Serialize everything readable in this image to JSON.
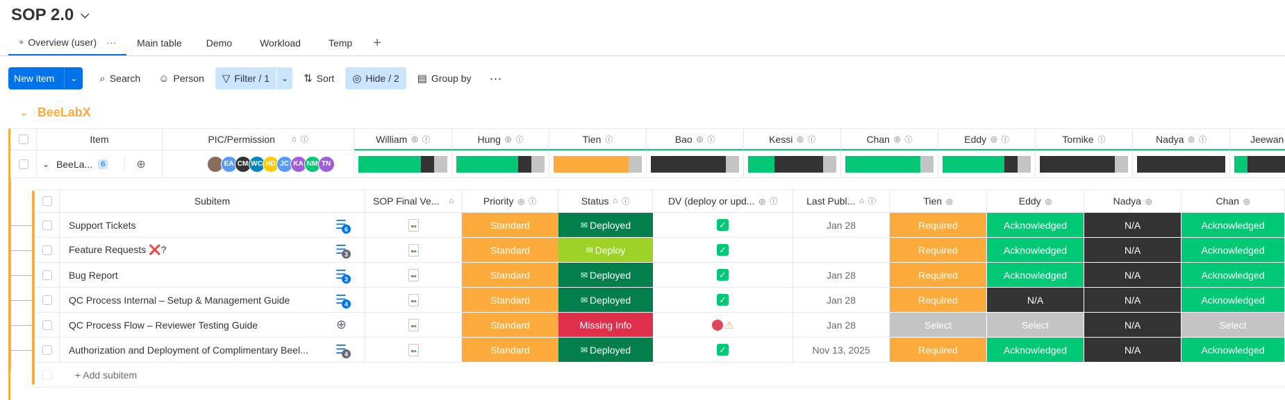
{
  "board": {
    "title": "SOP 2.0"
  },
  "tabs": [
    {
      "label": "Overview (user)"
    },
    {
      "label": "Main table"
    },
    {
      "label": "Demo"
    },
    {
      "label": "Workload"
    },
    {
      "label": "Temp"
    }
  ],
  "toolbar": {
    "new_item": "New item",
    "search": "Search",
    "person": "Person",
    "filter": "Filter / 1",
    "sort": "Sort",
    "hide": "Hide / 2",
    "group_by": "Group by"
  },
  "group": {
    "title": "BeeLabX",
    "columns": [
      "Item",
      "PIC/Permission",
      "William",
      "Hung",
      "Tien",
      "Bao",
      "Kessi",
      "Chan",
      "Eddy",
      "Tornike",
      "Nadya",
      "Jeewan"
    ],
    "item": {
      "name": "BeeLa...",
      "subitem_count": "6"
    },
    "avatars": [
      "EA",
      "CM",
      "WC",
      "HD",
      "JC",
      "KA",
      "NM",
      "TN"
    ]
  },
  "colors": {
    "green": "#00c875",
    "dark": "#333333",
    "gray": "#c4c4c4",
    "orange": "#fdab3d",
    "red": "#df2f4a",
    "lime": "#9cd326",
    "darkgreen": "#037f4c",
    "blue": "#0073ea"
  },
  "subitems": {
    "columns": [
      "Subitem",
      "SOP Final Ve...",
      "Priority",
      "Status",
      "DV (deploy or upd...",
      "Last Publ...",
      "Tien",
      "Eddy",
      "Nadya",
      "Chan"
    ],
    "rows": [
      {
        "name": "Support Tickets",
        "updates": "6",
        "priority": "Standard",
        "status": "Deployed",
        "dv": "check",
        "last": "Jan 28",
        "tien": "Required",
        "eddy": "Acknowledged",
        "nadya": "N/A",
        "chan": "Acknowledged"
      },
      {
        "name": "Feature Requests ❌?",
        "updates": "3",
        "priority": "Standard",
        "status": "Deploy",
        "dv": "check",
        "last": "",
        "tien": "Required",
        "eddy": "Acknowledged",
        "nadya": "N/A",
        "chan": "Acknowledged"
      },
      {
        "name": "Bug Report",
        "updates": "3",
        "priority": "Standard",
        "status": "Deployed",
        "dv": "check",
        "last": "Jan 28",
        "tien": "Required",
        "eddy": "Acknowledged",
        "nadya": "N/A",
        "chan": "Acknowledged"
      },
      {
        "name": "QC Process Internal – Setup & Management Guide",
        "updates": "4",
        "priority": "Standard",
        "status": "Deployed",
        "dv": "check",
        "last": "Jan 28",
        "tien": "Required",
        "eddy": "N/A",
        "nadya": "N/A",
        "chan": "Acknowledged"
      },
      {
        "name": "QC Process Flow – Reviewer Testing Guide",
        "updates": "",
        "priority": "Standard",
        "status": "Missing Info",
        "dv": "warn",
        "last": "Jan 28",
        "tien": "Select",
        "eddy": "Select",
        "nadya": "N/A",
        "chan": "Select"
      },
      {
        "name": "Authorization and Deployment of Complimentary Beel...",
        "updates": "4",
        "priority": "Standard",
        "status": "Deployed",
        "dv": "check",
        "last": "Nov 13, 2025",
        "tien": "Required",
        "eddy": "Acknowledged",
        "nadya": "N/A",
        "chan": "Acknowledged"
      }
    ],
    "add_subitem": "+ Add subitem"
  }
}
